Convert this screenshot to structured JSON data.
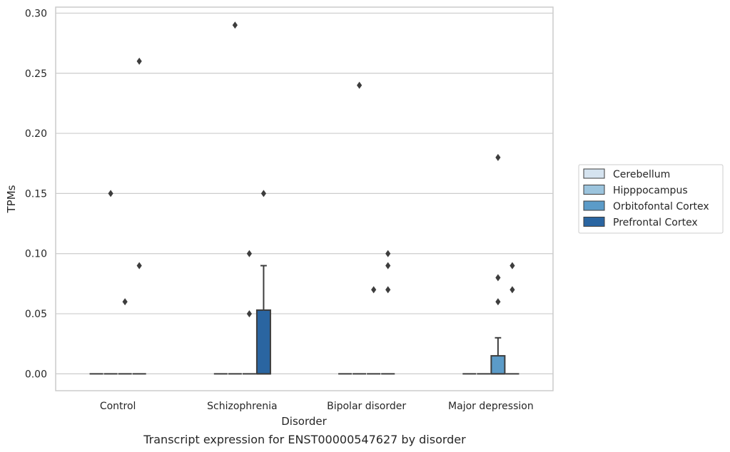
{
  "chart_data": {
    "type": "boxplot",
    "title": "",
    "caption": "Transcript expression for ENST00000547627 by disorder",
    "xlabel": "Disorder",
    "ylabel": "TPMs",
    "ylim": [
      -0.014,
      0.305
    ],
    "yticks": [
      0.0,
      0.05,
      0.1,
      0.15,
      0.2,
      0.25,
      0.3
    ],
    "ytick_labels": [
      "0.00",
      "0.05",
      "0.10",
      "0.15",
      "0.20",
      "0.25",
      "0.30"
    ],
    "grid": "horizontal",
    "legend_position": "right",
    "categories": [
      "Control",
      "Schizophrenia",
      "Bipolar disorder",
      "Major depression"
    ],
    "series": [
      {
        "name": "Cerebellum",
        "color": "#d5e3ef",
        "boxes": [
          {
            "category": "Control",
            "q1": 0,
            "median": 0,
            "q3": 0,
            "whisker_low": 0,
            "whisker_high": 0,
            "outliers": []
          },
          {
            "category": "Schizophrenia",
            "q1": 0,
            "median": 0,
            "q3": 0,
            "whisker_low": 0,
            "whisker_high": 0,
            "outliers": []
          },
          {
            "category": "Bipolar disorder",
            "q1": 0,
            "median": 0,
            "q3": 0,
            "whisker_low": 0,
            "whisker_high": 0,
            "outliers": []
          },
          {
            "category": "Major depression",
            "q1": 0,
            "median": 0,
            "q3": 0,
            "whisker_low": 0,
            "whisker_high": 0,
            "outliers": []
          }
        ]
      },
      {
        "name": "Hipppocampus",
        "color": "#9cc4dd",
        "boxes": [
          {
            "category": "Control",
            "q1": 0,
            "median": 0,
            "q3": 0,
            "whisker_low": 0,
            "whisker_high": 0,
            "outliers": [
              0.15
            ]
          },
          {
            "category": "Schizophrenia",
            "q1": 0,
            "median": 0,
            "q3": 0,
            "whisker_low": 0,
            "whisker_high": 0,
            "outliers": [
              0.29
            ]
          },
          {
            "category": "Bipolar disorder",
            "q1": 0,
            "median": 0,
            "q3": 0,
            "whisker_low": 0,
            "whisker_high": 0,
            "outliers": [
              0.24
            ]
          },
          {
            "category": "Major depression",
            "q1": 0,
            "median": 0,
            "q3": 0,
            "whisker_low": 0,
            "whisker_high": 0,
            "outliers": []
          }
        ]
      },
      {
        "name": "Orbitofontal Cortex",
        "color": "#5b9bc8",
        "boxes": [
          {
            "category": "Control",
            "q1": 0,
            "median": 0,
            "q3": 0,
            "whisker_low": 0,
            "whisker_high": 0,
            "outliers": [
              0.06
            ]
          },
          {
            "category": "Schizophrenia",
            "q1": 0,
            "median": 0,
            "q3": 0,
            "whisker_low": 0,
            "whisker_high": 0,
            "outliers": [
              0.05,
              0.1
            ]
          },
          {
            "category": "Bipolar disorder",
            "q1": 0,
            "median": 0,
            "q3": 0,
            "whisker_low": 0,
            "whisker_high": 0,
            "outliers": [
              0.07
            ]
          },
          {
            "category": "Major depression",
            "q1": 0,
            "median": 0,
            "q3": 0.015,
            "whisker_low": 0,
            "whisker_high": 0.03,
            "outliers": [
              0.06,
              0.08,
              0.18
            ]
          }
        ]
      },
      {
        "name": "Prefrontal Cortex",
        "color": "#2a65a1",
        "boxes": [
          {
            "category": "Control",
            "q1": 0,
            "median": 0,
            "q3": 0,
            "whisker_low": 0,
            "whisker_high": 0,
            "outliers": [
              0.09,
              0.26
            ]
          },
          {
            "category": "Schizophrenia",
            "q1": 0,
            "median": 0,
            "q3": 0.053,
            "whisker_low": 0,
            "whisker_high": 0.09,
            "outliers": [
              0.15
            ]
          },
          {
            "category": "Bipolar disorder",
            "q1": 0,
            "median": 0,
            "q3": 0,
            "whisker_low": 0,
            "whisker_high": 0,
            "outliers": [
              0.07,
              0.09,
              0.1
            ]
          },
          {
            "category": "Major depression",
            "q1": 0,
            "median": 0,
            "q3": 0,
            "whisker_low": 0,
            "whisker_high": 0,
            "outliers": [
              0.07,
              0.09
            ]
          }
        ]
      }
    ]
  }
}
